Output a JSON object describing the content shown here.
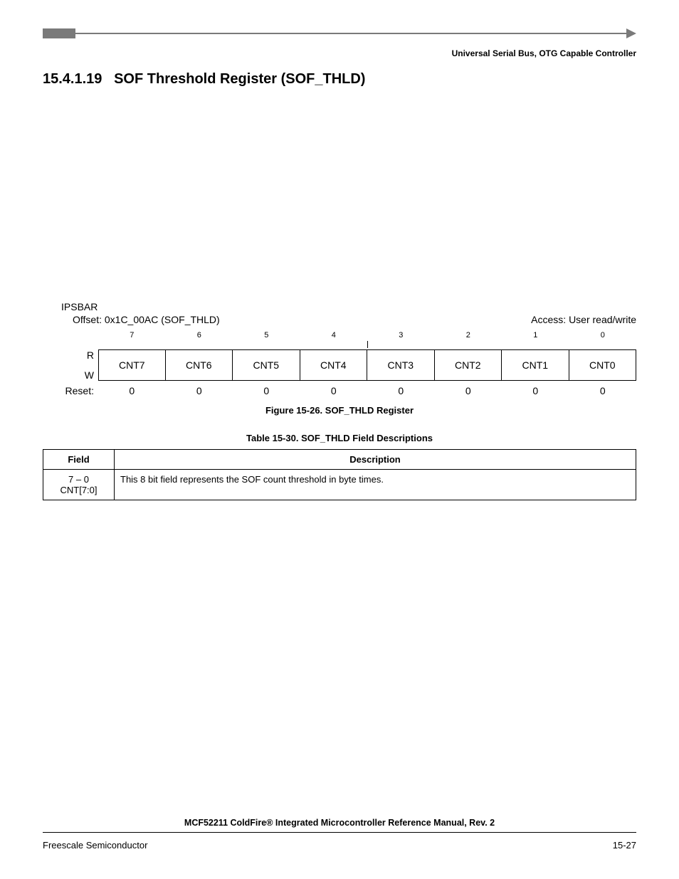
{
  "header": {
    "category": "Universal Serial Bus, OTG Capable Controller"
  },
  "section": {
    "number": "15.4.1.19",
    "title": "SOF Threshold Register (SOF_THLD)"
  },
  "register": {
    "ipsbar_label": "IPSBAR",
    "offset_label": "Offset:",
    "offset_value": "0x1C_00AC (SOF_THLD)",
    "access_label": "Access: User read/write",
    "bit_numbers": [
      "7",
      "6",
      "5",
      "4",
      "3",
      "2",
      "1",
      "0"
    ],
    "rw_r": "R",
    "rw_w": "W",
    "fields": [
      "CNT7",
      "CNT6",
      "CNT5",
      "CNT4",
      "CNT3",
      "CNT2",
      "CNT1",
      "CNT0"
    ],
    "reset_label": "Reset:",
    "reset_values": [
      "0",
      "0",
      "0",
      "0",
      "0",
      "0",
      "0",
      "0"
    ],
    "figure_caption": "Figure 15-26. SOF_THLD Register"
  },
  "table": {
    "caption": "Table 15-30. SOF_THLD Field Descriptions",
    "header_field": "Field",
    "header_desc": "Description",
    "rows": [
      {
        "field_range": "7 – 0",
        "field_name": "CNT[7:0]",
        "description": "This 8 bit field represents the SOF count threshold in byte times."
      }
    ]
  },
  "footer": {
    "manual": "MCF52211 ColdFire® Integrated Microcontroller Reference Manual, Rev. 2",
    "company": "Freescale Semiconductor",
    "page": "15-27"
  },
  "styling": {
    "page_bg": "#ffffff",
    "text_color": "#000000",
    "header_bar_color": "#7a7a7a",
    "border_color": "#000000",
    "body_fontsize": 13,
    "title_fontsize": 20,
    "caption_fontsize": 13,
    "footer_fontsize": 13
  }
}
